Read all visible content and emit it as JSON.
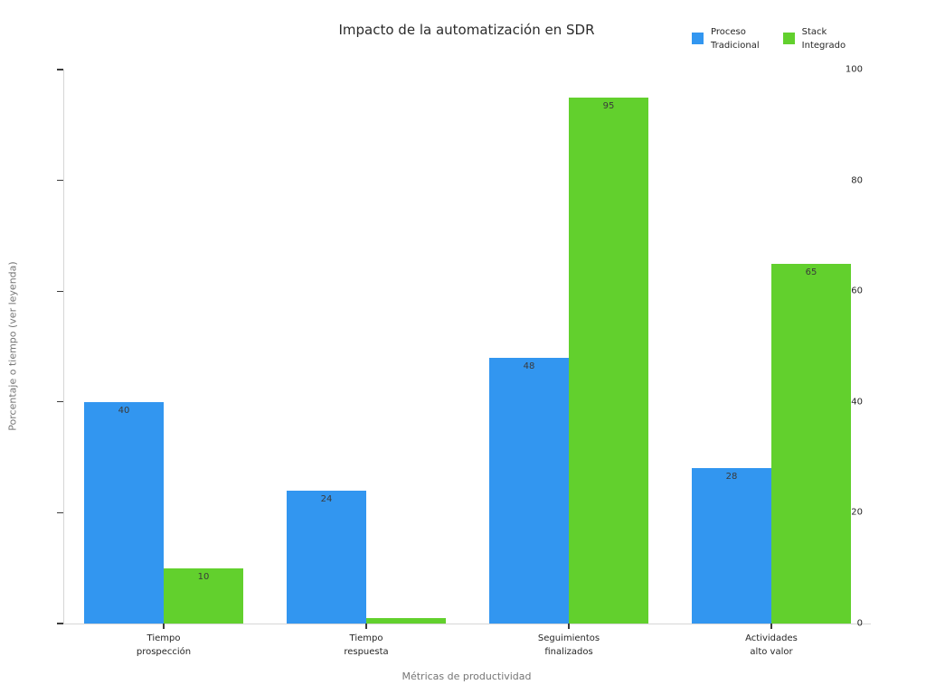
{
  "chart_data": {
    "type": "bar",
    "title": "Impacto de la automatización en SDR",
    "xlabel": "Métricas de productividad",
    "ylabel": "Porcentaje o tiempo (ver leyenda)",
    "categories": [
      "Tiempo prospección",
      "Tiempo respuesta",
      "Seguimientos finalizados",
      "Actividades alto valor"
    ],
    "category_lines": [
      [
        "Tiempo",
        "prospección"
      ],
      [
        "Tiempo",
        "respuesta"
      ],
      [
        "Seguimientos",
        "finalizados"
      ],
      [
        "Actividades",
        "alto valor"
      ]
    ],
    "series": [
      {
        "name": "Proceso Tradicional",
        "legend_lines": [
          "Proceso",
          "Tradicional"
        ],
        "color": "#3296F0",
        "values": [
          40,
          24,
          48,
          28
        ]
      },
      {
        "name": "Stack Integrado",
        "legend_lines": [
          "Stack",
          "Integrado"
        ],
        "color": "#62D02D",
        "values": [
          10,
          1,
          95,
          65
        ]
      }
    ],
    "ylim": [
      0,
      100
    ],
    "yticks": [
      0,
      20,
      40,
      60,
      80,
      100
    ],
    "bar_value_labels": true,
    "legend_position": "top-right",
    "grid": false,
    "background_color": "#ffffff",
    "spine_color": "#d6d6d6",
    "tick_text_color": "#262626",
    "axis_label_color": "#757575"
  }
}
